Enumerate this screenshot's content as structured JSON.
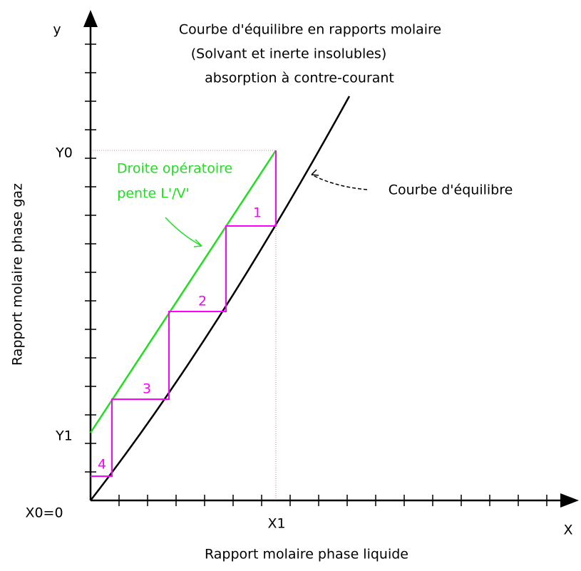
{
  "title": {
    "lines": [
      "Courbe d'équilibre en rapports molaire",
      "(Solvant et inerte insolubles)",
      "absorption à contre-courant"
    ]
  },
  "axes": {
    "y_symbol": "y",
    "x_symbol": "X",
    "y_label": "Rapport molaire phase gaz",
    "x_label": "Rapport molaire phase liquide"
  },
  "points": {
    "y0": "Y0",
    "y1": "Y1",
    "x0": "X0=0",
    "x1": "X1"
  },
  "annotations": {
    "operating_line": [
      "Droite opératoire",
      "pente  L'/V'"
    ],
    "equilibrium_curve": "Courbe d'équilibre"
  },
  "stages": [
    "1",
    "2",
    "3",
    "4"
  ]
}
